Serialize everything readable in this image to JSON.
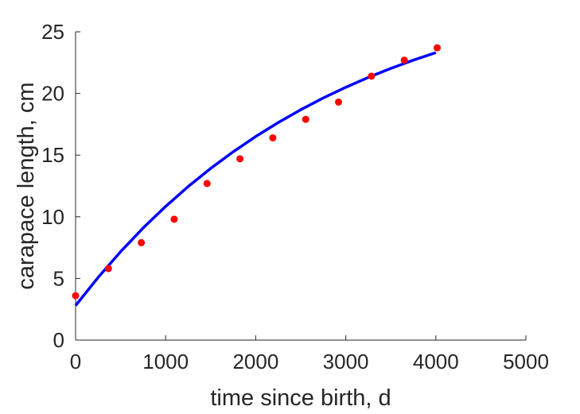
{
  "chart_data": {
    "type": "scatter",
    "title": "",
    "xlabel": "time since birth, d",
    "ylabel": "carapace length, cm",
    "xlim": [
      0,
      5000
    ],
    "ylim": [
      0,
      25
    ],
    "x_ticks": [
      0,
      1000,
      2000,
      3000,
      4000,
      5000
    ],
    "y_ticks": [
      0,
      5,
      10,
      15,
      20,
      25
    ],
    "grid": false,
    "series": [
      {
        "kind": "scatter",
        "color": "#ff0000",
        "x": [
          0,
          365,
          730,
          1095,
          1460,
          1825,
          2190,
          2555,
          2920,
          3285,
          3650,
          4015
        ],
        "y": [
          3.6,
          5.8,
          7.9,
          9.8,
          12.7,
          14.7,
          16.4,
          17.9,
          19.3,
          21.4,
          22.7,
          23.7
        ]
      },
      {
        "kind": "line",
        "color": "#0000ff",
        "x": [
          0,
          250,
          500,
          750,
          1000,
          1250,
          1500,
          1750,
          2000,
          2250,
          2500,
          2750,
          3000,
          3250,
          3500,
          3750,
          4000
        ],
        "y": [
          2.8,
          5.08,
          7.17,
          9.09,
          10.84,
          12.45,
          13.92,
          15.27,
          16.51,
          17.64,
          18.68,
          19.63,
          20.5,
          21.3,
          22.03,
          22.7,
          23.31
        ]
      }
    ]
  }
}
